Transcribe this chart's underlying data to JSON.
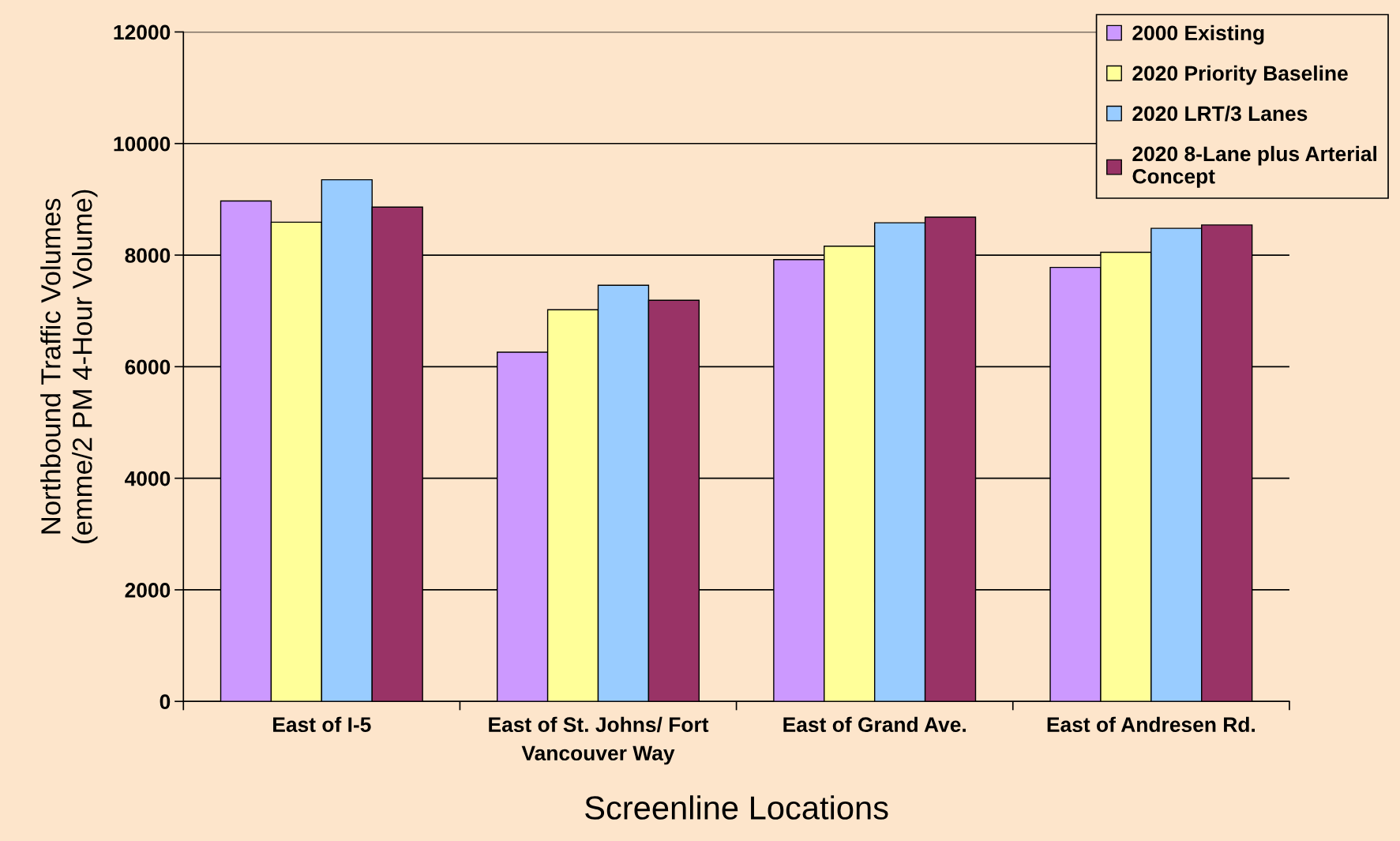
{
  "chart_data": {
    "type": "bar",
    "xlabel": "Screenline Locations",
    "ylabel": "Northbound Traffic Volumes\n(emme/2 PM 4-Hour Volume)",
    "categories": [
      "East of I-5",
      "East of St. Johns/ Fort\nVancouver Way",
      "East of Grand Ave.",
      "East of Andresen Rd."
    ],
    "series": [
      {
        "name": "2000 Existing",
        "color": "#cc99ff",
        "values": [
          8970,
          6260,
          7920,
          7780
        ]
      },
      {
        "name": "2020 Priority Baseline",
        "color": "#ffff99",
        "values": [
          8590,
          7020,
          8160,
          8050
        ]
      },
      {
        "name": "2020 LRT/3 Lanes",
        "color": "#99ccff",
        "values": [
          9350,
          7460,
          8580,
          8480
        ]
      },
      {
        "name": "2020 8-Lane plus Arterial\nConcept",
        "color": "#993366",
        "values": [
          8860,
          7190,
          8680,
          8540
        ]
      }
    ],
    "ylim": [
      0,
      12000
    ],
    "yticks": [
      0,
      2000,
      4000,
      6000,
      8000,
      10000,
      12000
    ],
    "grid": "y",
    "legend": "top right"
  }
}
